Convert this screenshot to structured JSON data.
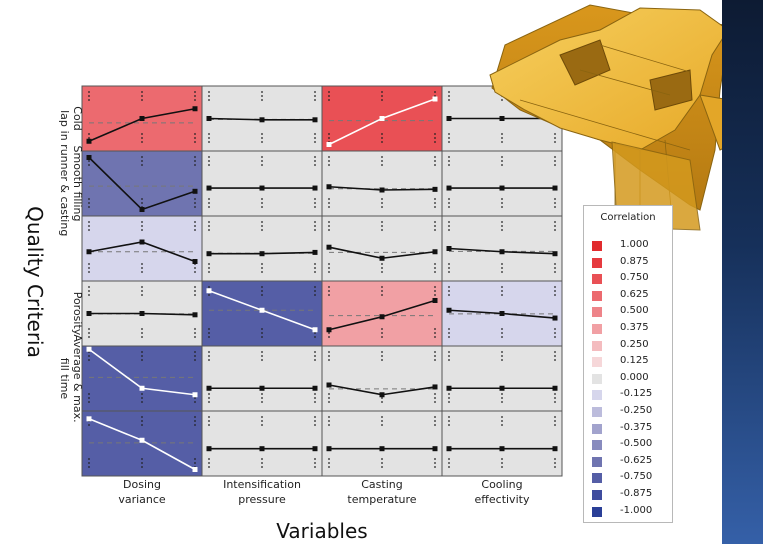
{
  "chart_data": {
    "type": "scatter",
    "subtype": "correlation-matrix-of-main-effects-plots",
    "xlabel": "Variables",
    "ylabel": "Quality Criteria",
    "columns": [
      "Dosing\nvariance",
      "Intensification\npressure",
      "Casting\ntemperature",
      "Cooling\neffectivity"
    ],
    "rows": [
      "Cold\nlap",
      "Smooth filling\nin runner & casting",
      "",
      "Porosity",
      "Average & max.\nfill time",
      ""
    ],
    "legend": {
      "title": "Correlation",
      "values": [
        "1.000",
        "0.875",
        "0.750",
        "0.625",
        "0.500",
        "0.375",
        "0.250",
        "0.125",
        "0.000",
        "-0.125",
        "-0.250",
        "-0.375",
        "-0.500",
        "-0.625",
        "-0.750",
        "-0.875",
        "-1.000"
      ],
      "colors": [
        "#e12b2e",
        "#e63a3f",
        "#e95055",
        "#ec6a6f",
        "#ee8489",
        "#f1a0a4",
        "#f4bcbf",
        "#f6d7d9",
        "#e3e3e3",
        "#d6d6ec",
        "#bcbcdc",
        "#a2a3cd",
        "#888bbe",
        "#6f74b0",
        "#555ea6",
        "#3f4c9e",
        "#2a3f97"
      ]
    },
    "cells": [
      [
        {
          "correlation": 0.625,
          "points": [
            0.15,
            0.5,
            0.65
          ],
          "line": "dark"
        },
        {
          "correlation": 0.0,
          "points": [
            0.5,
            0.48,
            0.48
          ],
          "line": "dark"
        },
        {
          "correlation": 0.75,
          "points": [
            0.1,
            0.5,
            0.8
          ],
          "line": "white"
        },
        {
          "correlation": 0.0,
          "points": [
            0.5,
            0.5,
            0.5
          ],
          "line": "dark"
        }
      ],
      [
        {
          "correlation": -0.625,
          "points": [
            0.9,
            0.1,
            0.38
          ],
          "line": "dark"
        },
        {
          "correlation": 0.0,
          "points": [
            0.43,
            0.43,
            0.43
          ],
          "line": "dark"
        },
        {
          "correlation": 0.0,
          "points": [
            0.45,
            0.4,
            0.41
          ],
          "line": "dark"
        },
        {
          "correlation": 0.0,
          "points": [
            0.43,
            0.43,
            0.43
          ],
          "line": "dark"
        }
      ],
      [
        {
          "correlation": -0.125,
          "points": [
            0.45,
            0.6,
            0.3
          ],
          "line": "dark"
        },
        {
          "correlation": 0.0,
          "points": [
            0.42,
            0.42,
            0.44
          ],
          "line": "dark"
        },
        {
          "correlation": 0.0,
          "points": [
            0.52,
            0.35,
            0.45
          ],
          "line": "dark"
        },
        {
          "correlation": 0.0,
          "points": [
            0.5,
            0.45,
            0.42
          ],
          "line": "dark"
        }
      ],
      [
        {
          "correlation": 0.0,
          "points": [
            0.5,
            0.5,
            0.48
          ],
          "line": "dark"
        },
        {
          "correlation": -0.75,
          "points": [
            0.85,
            0.55,
            0.25
          ],
          "line": "white"
        },
        {
          "correlation": 0.375,
          "points": [
            0.25,
            0.45,
            0.7
          ],
          "line": "dark"
        },
        {
          "correlation": -0.125,
          "points": [
            0.55,
            0.5,
            0.43
          ],
          "line": "dark"
        }
      ],
      [
        {
          "correlation": -0.75,
          "points": [
            0.95,
            0.35,
            0.25
          ],
          "line": "white"
        },
        {
          "correlation": 0.0,
          "points": [
            0.35,
            0.35,
            0.35
          ],
          "line": "dark"
        },
        {
          "correlation": 0.0,
          "points": [
            0.4,
            0.25,
            0.37
          ],
          "line": "dark"
        },
        {
          "correlation": 0.0,
          "points": [
            0.35,
            0.35,
            0.35
          ],
          "line": "dark"
        }
      ],
      [
        {
          "correlation": -0.75,
          "points": [
            0.88,
            0.55,
            0.1
          ],
          "line": "white"
        },
        {
          "correlation": 0.0,
          "points": [
            0.42,
            0.42,
            0.42
          ],
          "line": "dark"
        },
        {
          "correlation": 0.0,
          "points": [
            0.42,
            0.42,
            0.42
          ],
          "line": "dark"
        },
        {
          "correlation": 0.0,
          "points": [
            0.42,
            0.42,
            0.42
          ],
          "line": "dark"
        }
      ]
    ]
  },
  "colors": {
    "cell_border": "#555555",
    "ref_dash": "#777777",
    "mark_dark": "#111111",
    "mark_white": "#ffffff",
    "casting_model": "#f0b93a",
    "casting_edge": "#8a6410"
  }
}
